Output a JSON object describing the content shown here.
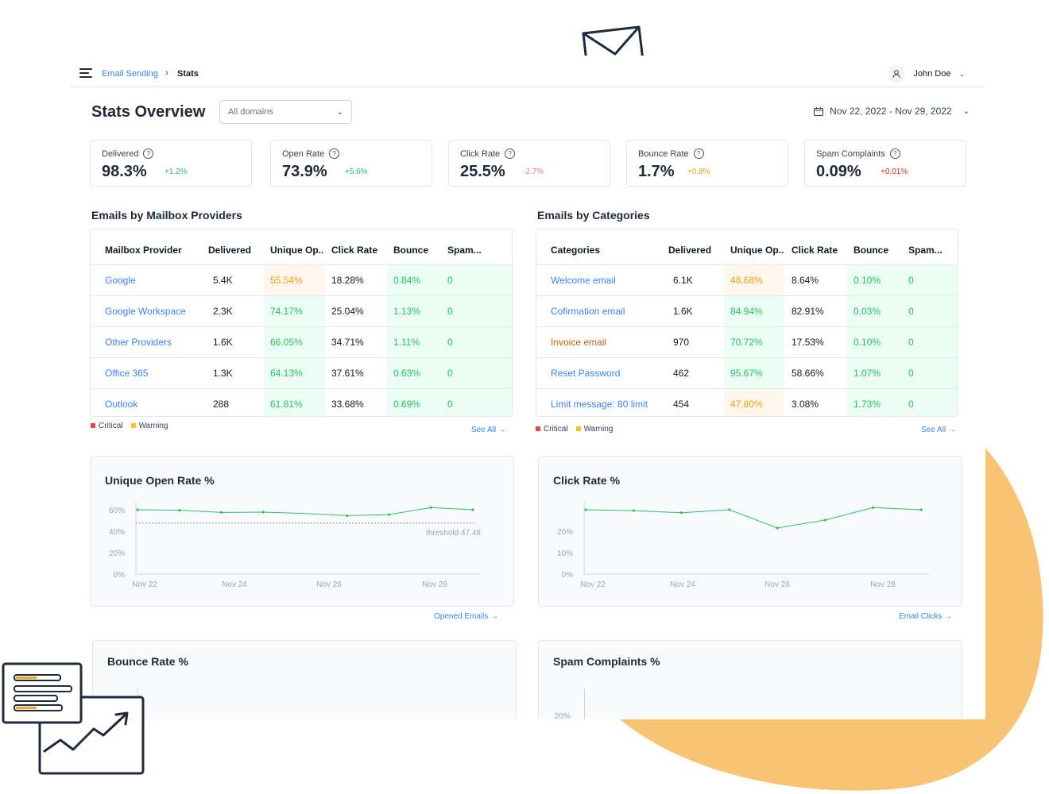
{
  "breadcrumb": {
    "parent": "Email Sending",
    "separator": "›",
    "current": "Stats"
  },
  "user": {
    "name": "John Doe"
  },
  "header": {
    "title": "Stats Overview",
    "domain_select": "All domains",
    "date_range": "Nov 22, 2022 - Nov 29, 2022"
  },
  "kpis": [
    {
      "label": "Delivered",
      "value": "98.3%",
      "delta": "+1.2%",
      "delta_color": "#22c55e"
    },
    {
      "label": "Open Rate",
      "value": "73.9%",
      "delta": "+5.6%",
      "delta_color": "#22c55e"
    },
    {
      "label": "Click Rate",
      "value": "25.5%",
      "delta": "-2.7%",
      "delta_color": "#f87171"
    },
    {
      "label": "Bounce Rate",
      "value": "1.7%",
      "delta": "+0.8%",
      "delta_color": "#f59e0b"
    },
    {
      "label": "Spam Complaints",
      "value": "0.09%",
      "delta": "+0.01%",
      "delta_color": "#dc2626"
    }
  ],
  "providers": {
    "title": "Emails by Mailbox Providers",
    "headers": [
      "Mailbox Provider",
      "Delivered",
      "Unique Op..",
      "Click Rate",
      "Bounce",
      "Spam..."
    ],
    "rows": [
      [
        "Google",
        "5.4K",
        "55.54%",
        "18.28%",
        "0.84%",
        "0"
      ],
      [
        "Google Workspace",
        "2.3K",
        "74.17%",
        "25.04%",
        "1.13%",
        "0"
      ],
      [
        "Other Providers",
        "1.6K",
        "66.05%",
        "34.71%",
        "1.11%",
        "0"
      ],
      [
        "Office 365",
        "1.3K",
        "64.13%",
        "37.61%",
        "0.63%",
        "0"
      ],
      [
        "Outlook",
        "288",
        "61.81%",
        "33.68%",
        "0.69%",
        "0"
      ]
    ],
    "open_status": [
      "warning",
      "ok",
      "ok",
      "ok",
      "ok"
    ],
    "legend": {
      "critical": "Critical",
      "warning": "Warning"
    },
    "see_all": "See All →"
  },
  "categories": {
    "title": "Emails by Categories",
    "headers": [
      "Categories",
      "Delivered",
      "Unique Op..",
      "Click Rate",
      "Bounce",
      "Spam..."
    ],
    "rows": [
      [
        "Welcome email",
        "6.1K",
        "48.68%",
        "8.64%",
        "0.10%",
        "0"
      ],
      [
        "Cofirmation email",
        "1.6K",
        "84.94%",
        "82.91%",
        "0.03%",
        "0"
      ],
      [
        "Invoice email",
        "970",
        "70.72%",
        "17.53%",
        "0.10%",
        "0"
      ],
      [
        "Reset Password",
        "462",
        "95.67%",
        "58.66%",
        "1.07%",
        "0"
      ],
      [
        "Limit message: 80 limit",
        "454",
        "47.80%",
        "3.08%",
        "1.73%",
        "0"
      ]
    ],
    "open_status": [
      "warning",
      "ok",
      "ok",
      "ok",
      "warning"
    ],
    "legend": {
      "critical": "Critical",
      "warning": "Warning"
    },
    "see_all": "See All →"
  },
  "legend_colors": {
    "critical": "#ef4444",
    "warning": "#fbbf24"
  },
  "charts": {
    "open_rate_link": "Opened Emails →",
    "click_rate_link": "Email Clicks →"
  },
  "chart_data": [
    {
      "type": "line",
      "title": "Unique Open Rate %",
      "x": [
        "Nov 22",
        "Nov 23",
        "Nov 24",
        "Nov 25",
        "Nov 26",
        "Nov 26",
        "Nov 27",
        "Nov 28",
        "Nov 29"
      ],
      "x_tick_labels": [
        "Nov 22",
        "Nov 24",
        "Nov 26",
        "Nov 28"
      ],
      "y_tick_labels": [
        "60%",
        "40%",
        "20%",
        "0%"
      ],
      "ylim": [
        0,
        60
      ],
      "series": [
        {
          "values": [
            60,
            59.5,
            57.5,
            57.8,
            56.5,
            54.5,
            55.5,
            62,
            60
          ]
        }
      ],
      "threshold": {
        "value": 47.48,
        "label": "threshold 47.48"
      },
      "color": "#22c55e"
    },
    {
      "type": "line",
      "title": "Click Rate %",
      "x_tick_labels": [
        "Nov 22",
        "Nov 24",
        "Nov 26",
        "Nov 28"
      ],
      "y_tick_labels": [
        "20%",
        "10%",
        "0%"
      ],
      "ylim": [
        0,
        30
      ],
      "series": [
        {
          "values": [
            30,
            29.6,
            28.6,
            30,
            21.5,
            25.2,
            31,
            30
          ]
        }
      ],
      "color": "#22c55e"
    },
    {
      "type": "line",
      "title": "Bounce Rate %",
      "series": []
    },
    {
      "type": "line",
      "title": "Spam Complaints %",
      "y_tick_labels": [
        "20%"
      ],
      "series": []
    }
  ]
}
